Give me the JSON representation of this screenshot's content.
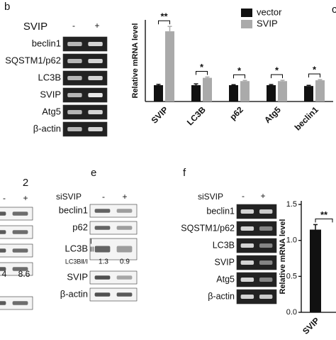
{
  "panels": {
    "b": {
      "label": "b",
      "treatment": "SVIP",
      "lanes": [
        "-",
        "+"
      ],
      "rows": [
        "beclin1",
        "SQSTM1/p62",
        "LC3B",
        "SVIP",
        "Atg5",
        "β-actin"
      ]
    },
    "c": {
      "label": "c"
    },
    "left": {
      "label": "2",
      "lanes": [
        "-",
        "+"
      ],
      "ratios": [
        "4",
        "8.6"
      ]
    },
    "e": {
      "label": "e",
      "treatment": "siSVIP",
      "lanes": [
        "-",
        "+"
      ],
      "rows": [
        "beclin1",
        "p62",
        "LC3B"
      ],
      "lc3_forms": [
        "I",
        "II"
      ],
      "ratio_label": "LC3BⅡ/Ⅰ",
      "ratios": [
        "1.3",
        "0.9"
      ],
      "rows2": [
        "SVIP",
        "β-actin"
      ]
    },
    "f": {
      "label": "f",
      "treatment": "siSVIP",
      "lanes": [
        "-",
        "+"
      ],
      "rows": [
        "beclin1",
        "SQSTM1/p62",
        "LC3B",
        "SVIP",
        "Atg5",
        "β-actin"
      ]
    }
  },
  "chart_data": [
    {
      "type": "bar",
      "y_label": "Relative mRNA level",
      "categories": [
        "SVIP",
        "LC3B",
        "p62",
        "Atg5",
        "beclin1"
      ],
      "series": [
        {
          "name": "vector",
          "color": "#111111",
          "values": [
            1.0,
            1.0,
            1.0,
            1.0,
            0.95
          ],
          "errors": [
            0.05,
            0.08,
            0.03,
            0.04,
            0.04
          ]
        },
        {
          "name": "SVIP",
          "color": "#aaaaaa",
          "values": [
            4.3,
            1.45,
            1.25,
            1.25,
            1.3
          ],
          "errors": [
            0.3,
            0.05,
            0.04,
            0.05,
            0.04
          ]
        }
      ],
      "significance": [
        "**",
        "*",
        "*",
        "*",
        "*"
      ],
      "ylim": [
        0,
        5
      ],
      "legend": "top-right"
    },
    {
      "type": "bar",
      "y_label": "Relative mRNA level",
      "categories": [
        "SVIP"
      ],
      "series": [
        {
          "name": "siSVIP",
          "color": "#111111",
          "values": [
            1.15
          ],
          "errors": [
            0.07
          ]
        }
      ],
      "significance": [
        "**"
      ],
      "ylim": [
        0,
        1.55
      ],
      "yticks": [
        {
          "value": 0,
          "label": "0.0"
        },
        {
          "value": 0.5,
          "label": "0.5"
        },
        {
          "value": 1,
          "label": "1.0"
        },
        {
          "value": 1.5,
          "label": "1.5"
        }
      ]
    }
  ]
}
